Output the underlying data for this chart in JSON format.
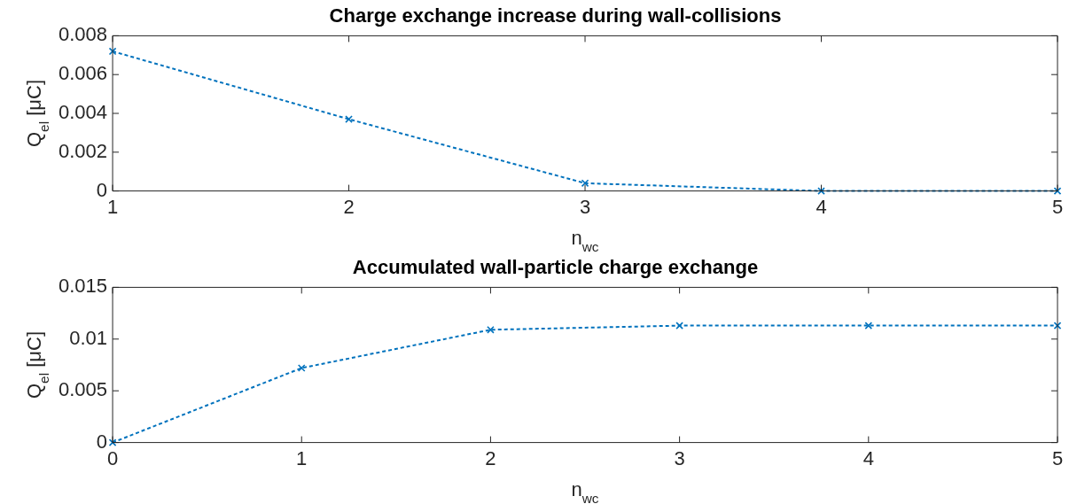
{
  "chart_data": [
    {
      "type": "line",
      "title": "Charge exchange increase during wall-collisions",
      "xlabel": "n$_{wc}$",
      "ylabel": "Q$_{el}$ [μC]",
      "x": [
        1,
        2,
        3,
        4,
        5
      ],
      "series": [
        {
          "color": "#0072bd",
          "values": [
            0.0072,
            0.0037,
            0.0004,
            0,
            0
          ]
        }
      ],
      "xlim": [
        1,
        5
      ],
      "xticks": [
        1,
        2,
        3,
        4,
        5
      ],
      "ylim": [
        0,
        0.008
      ],
      "yticks": [
        0,
        0.002,
        0.004,
        0.006,
        0.008
      ],
      "marker": "cross",
      "line_style": "dashed",
      "legend": false
    },
    {
      "type": "line",
      "title": "Accumulated wall-particle charge exchange",
      "xlabel": "n$_{wc}$",
      "ylabel": "Q$_{el}$ [μC]",
      "x": [
        0,
        1,
        2,
        3,
        4,
        5
      ],
      "series": [
        {
          "color": "#0072bd",
          "values": [
            0,
            0.0072,
            0.0109,
            0.0113,
            0.0113,
            0.0113
          ]
        }
      ],
      "xlim": [
        0,
        5
      ],
      "xticks": [
        0,
        1,
        2,
        3,
        4,
        5
      ],
      "ylim": [
        0,
        0.015
      ],
      "yticks": [
        0,
        0.005,
        0.01,
        0.015
      ],
      "marker": "cross",
      "line_style": "dashed",
      "legend": false
    }
  ]
}
